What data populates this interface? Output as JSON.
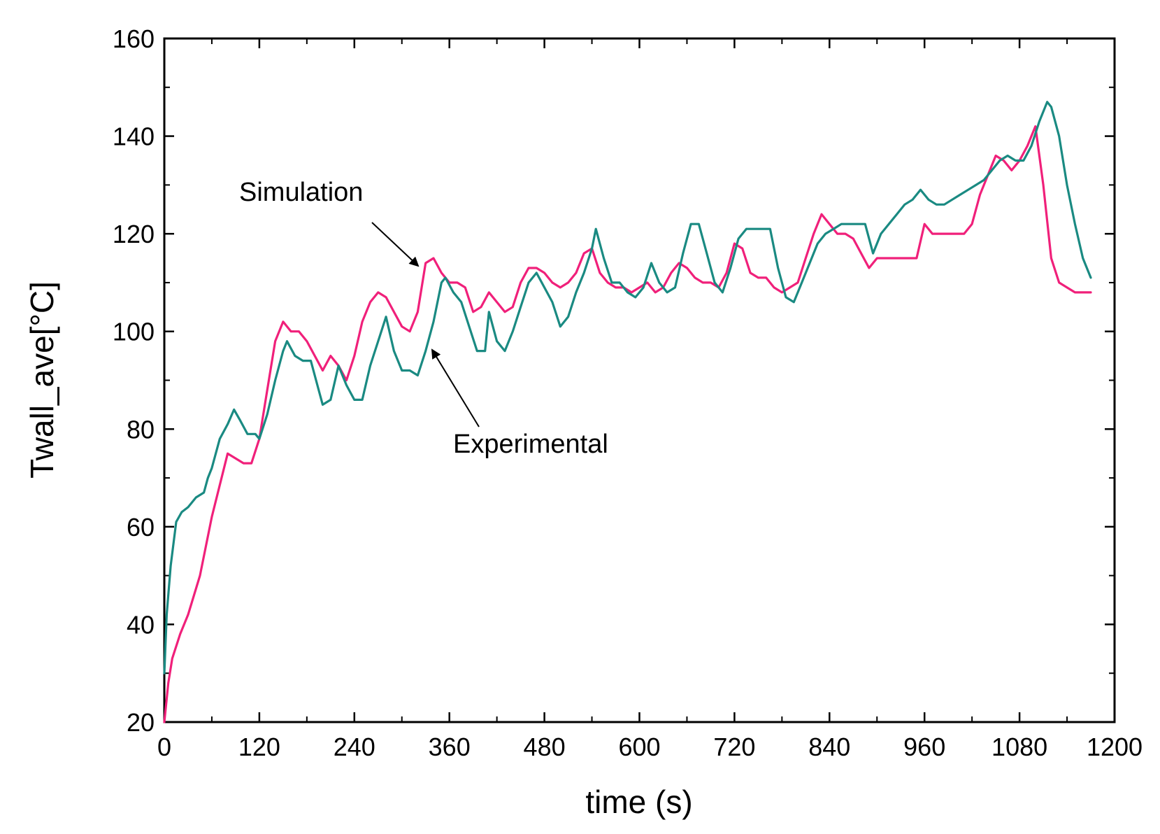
{
  "chart_data": {
    "type": "line",
    "title": "",
    "xlabel": "time (s)",
    "ylabel": "Twall_ave[°C]",
    "xlim": [
      0,
      1200
    ],
    "ylim": [
      20,
      160
    ],
    "x_ticks": [
      "0",
      "120",
      "240",
      "360",
      "480",
      "600",
      "720",
      "840",
      "960",
      "1080",
      "1200"
    ],
    "y_ticks": [
      "20",
      "40",
      "60",
      "80",
      "100",
      "120",
      "140",
      "160"
    ],
    "grid": false,
    "annotations": [
      {
        "text": "Simulation",
        "points_to": [
          330,
          114
        ]
      },
      {
        "text": "Experimental",
        "points_to": [
          330,
          97
        ]
      }
    ],
    "series": [
      {
        "name": "Simulation",
        "color": "#f0207a",
        "x": [
          0,
          5,
          10,
          20,
          30,
          45,
          60,
          80,
          100,
          110,
          120,
          130,
          140,
          150,
          160,
          170,
          180,
          190,
          200,
          210,
          220,
          230,
          240,
          250,
          260,
          270,
          280,
          290,
          300,
          310,
          320,
          330,
          340,
          350,
          360,
          370,
          380,
          390,
          400,
          410,
          420,
          430,
          440,
          450,
          460,
          470,
          480,
          490,
          500,
          510,
          520,
          530,
          540,
          550,
          560,
          570,
          580,
          590,
          600,
          610,
          620,
          630,
          640,
          650,
          660,
          670,
          680,
          690,
          700,
          710,
          720,
          730,
          740,
          750,
          760,
          770,
          780,
          790,
          800,
          810,
          820,
          830,
          840,
          850,
          860,
          870,
          880,
          890,
          900,
          910,
          920,
          930,
          940,
          950,
          960,
          970,
          980,
          990,
          1000,
          1010,
          1020,
          1030,
          1040,
          1050,
          1060,
          1070,
          1080,
          1090,
          1100,
          1110,
          1120,
          1130,
          1140,
          1150,
          1160,
          1170
        ],
        "values": [
          20,
          28,
          33,
          38,
          42,
          50,
          62,
          75,
          73,
          73,
          78,
          88,
          98,
          102,
          100,
          100,
          98,
          95,
          92,
          95,
          93,
          90,
          95,
          102,
          106,
          108,
          107,
          104,
          101,
          100,
          104,
          114,
          115,
          112,
          110,
          110,
          109,
          104,
          105,
          108,
          106,
          104,
          105,
          110,
          113,
          113,
          112,
          110,
          109,
          110,
          112,
          116,
          117,
          112,
          110,
          109,
          109,
          108,
          109,
          110,
          108,
          109,
          112,
          114,
          113,
          111,
          110,
          110,
          109,
          112,
          118,
          117,
          112,
          111,
          111,
          109,
          108,
          109,
          110,
          115,
          120,
          124,
          122,
          120,
          120,
          119,
          116,
          113,
          115,
          115,
          115,
          115,
          115,
          115,
          122,
          120,
          120,
          120,
          120,
          120,
          122,
          128,
          132,
          136,
          135,
          133,
          135,
          138,
          142,
          130,
          115,
          110,
          109,
          108,
          108,
          108
        ]
      },
      {
        "name": "Experimental",
        "color": "#1a8a82",
        "x": [
          0,
          3,
          8,
          15,
          22,
          30,
          40,
          50,
          55,
          60,
          70,
          80,
          88,
          95,
          105,
          115,
          120,
          130,
          140,
          150,
          155,
          165,
          175,
          185,
          195,
          200,
          210,
          220,
          230,
          240,
          250,
          260,
          270,
          280,
          290,
          300,
          310,
          320,
          330,
          340,
          350,
          355,
          365,
          375,
          385,
          395,
          405,
          410,
          420,
          430,
          440,
          450,
          460,
          470,
          480,
          490,
          500,
          510,
          520,
          530,
          540,
          545,
          555,
          565,
          575,
          585,
          595,
          605,
          615,
          625,
          635,
          645,
          655,
          665,
          675,
          685,
          695,
          705,
          715,
          725,
          735,
          745,
          755,
          765,
          775,
          785,
          795,
          805,
          815,
          825,
          835,
          845,
          855,
          865,
          875,
          885,
          895,
          905,
          915,
          925,
          935,
          945,
          955,
          965,
          975,
          985,
          995,
          1005,
          1015,
          1025,
          1035,
          1045,
          1055,
          1065,
          1075,
          1085,
          1095,
          1105,
          1115,
          1120,
          1130,
          1140,
          1150,
          1160,
          1170
        ],
        "values": [
          30,
          42,
          52,
          61,
          63,
          64,
          66,
          67,
          70,
          72,
          78,
          81,
          84,
          82,
          79,
          79,
          78,
          83,
          90,
          96,
          98,
          95,
          94,
          94,
          88,
          85,
          86,
          93,
          89,
          86,
          86,
          93,
          98,
          103,
          96,
          92,
          92,
          91,
          96,
          102,
          110,
          111,
          108,
          106,
          101,
          96,
          96,
          104,
          98,
          96,
          100,
          105,
          110,
          112,
          109,
          106,
          101,
          103,
          108,
          112,
          117,
          121,
          115,
          110,
          110,
          108,
          107,
          109,
          114,
          110,
          108,
          109,
          116,
          122,
          122,
          116,
          110,
          108,
          113,
          119,
          121,
          121,
          121,
          121,
          113,
          107,
          106,
          110,
          114,
          118,
          120,
          121,
          122,
          122,
          122,
          122,
          116,
          120,
          122,
          124,
          126,
          127,
          129,
          127,
          126,
          126,
          127,
          128,
          129,
          130,
          131,
          133,
          135,
          136,
          135,
          135,
          138,
          143,
          147,
          146,
          140,
          130,
          122,
          115,
          111
        ]
      }
    ]
  }
}
